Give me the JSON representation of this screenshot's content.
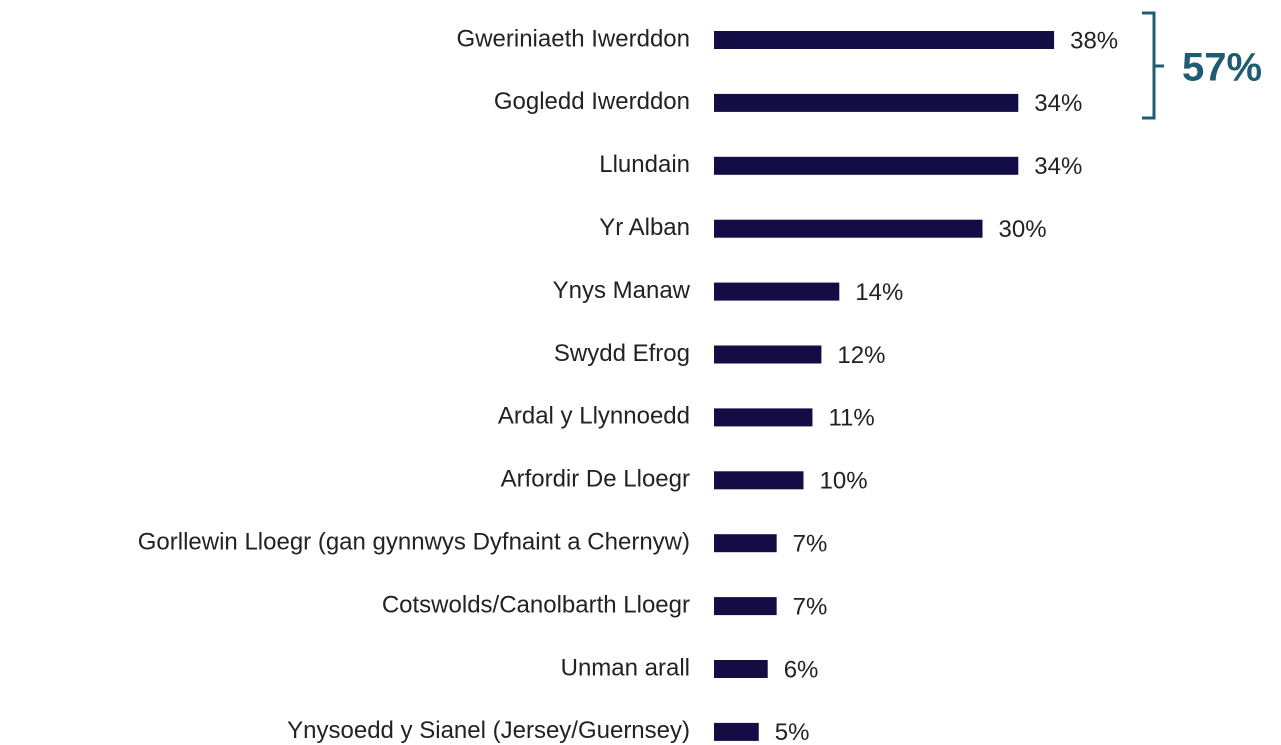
{
  "chart_data": {
    "type": "bar",
    "orientation": "horizontal",
    "categories": [
      "Gweriniaeth Iwerddon",
      "Gogledd Iwerddon",
      "Llundain",
      "Yr Alban",
      "Ynys Manaw",
      "Swydd Efrog",
      "Ardal y Llynnoedd",
      "Arfordir De Lloegr",
      "Gorllewin Lloegr (gan gynnwys Dyfnaint a Chernyw)",
      "Cotswolds/Canolbarth Lloegr",
      "Unman arall",
      "Ynysoedd y Sianel (Jersey/Guernsey)"
    ],
    "values": [
      38,
      34,
      34,
      30,
      14,
      12,
      11,
      10,
      7,
      7,
      6,
      5
    ],
    "value_labels": [
      "38%",
      "34%",
      "34%",
      "30%",
      "14%",
      "12%",
      "11%",
      "10%",
      "7%",
      "7%",
      "6%",
      "5%"
    ],
    "color": "#140c44",
    "xlim": [
      0,
      40
    ],
    "annotation": {
      "text": "57%",
      "color": "#1f5c73"
    }
  }
}
